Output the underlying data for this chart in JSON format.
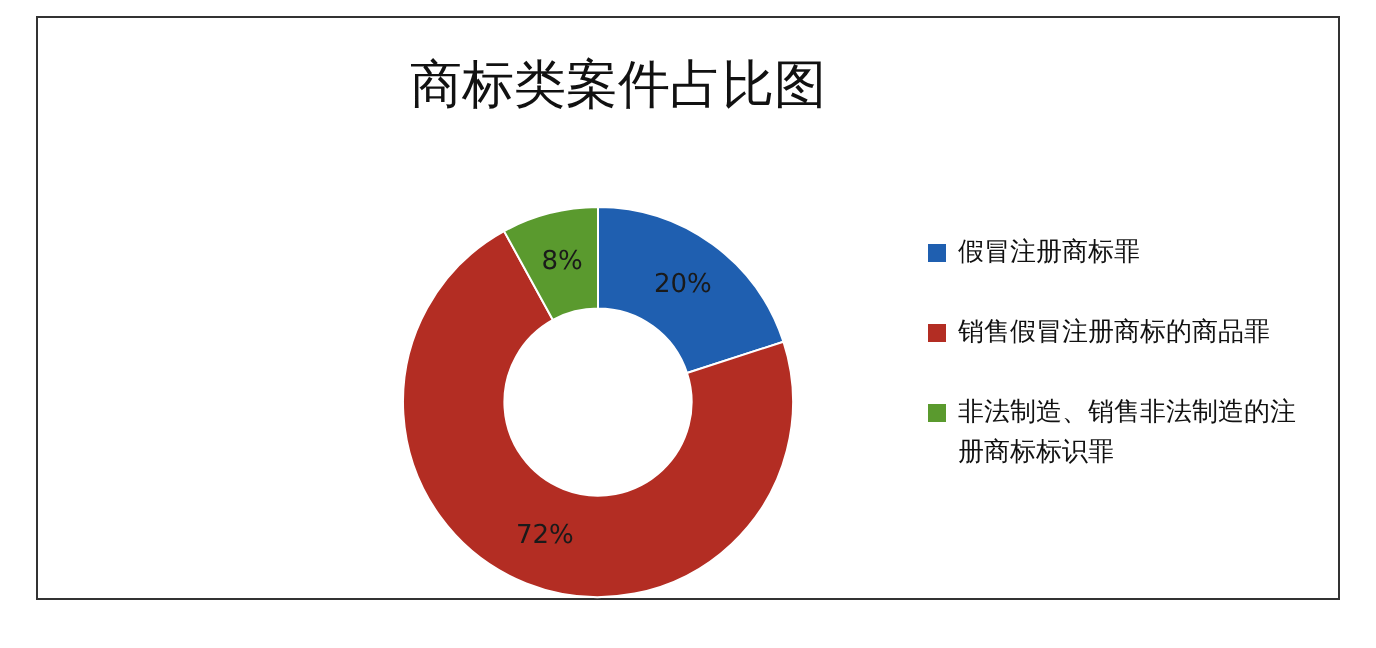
{
  "chart_data": {
    "type": "donut",
    "title": "商标类案件占比图",
    "categories": [
      "假冒注册商标罪",
      "销售假冒注册商标的商品罪",
      "非法制造、销售非法制造的注册商标标识罪"
    ],
    "values": [
      20,
      72,
      8
    ],
    "colors": [
      "#1f5fb0",
      "#b32d23",
      "#5a9a2e"
    ],
    "value_labels": [
      "20%",
      "72%",
      "8%"
    ],
    "legend": "right"
  }
}
